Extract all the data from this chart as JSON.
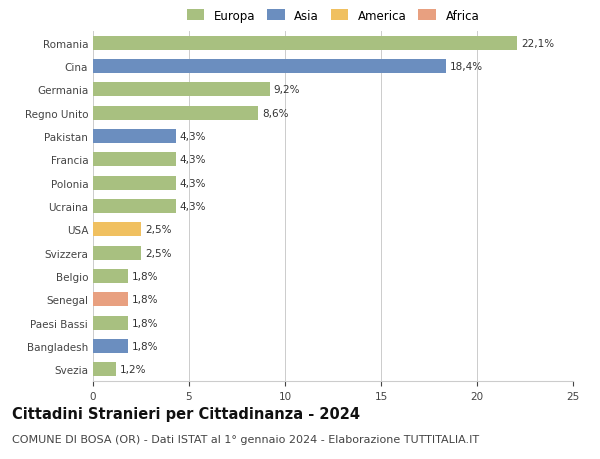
{
  "categories": [
    "Romania",
    "Cina",
    "Germania",
    "Regno Unito",
    "Pakistan",
    "Francia",
    "Polonia",
    "Ucraina",
    "USA",
    "Svizzera",
    "Belgio",
    "Senegal",
    "Paesi Bassi",
    "Bangladesh",
    "Svezia"
  ],
  "values": [
    22.1,
    18.4,
    9.2,
    8.6,
    4.3,
    4.3,
    4.3,
    4.3,
    2.5,
    2.5,
    1.8,
    1.8,
    1.8,
    1.8,
    1.2
  ],
  "labels": [
    "22,1%",
    "18,4%",
    "9,2%",
    "8,6%",
    "4,3%",
    "4,3%",
    "4,3%",
    "4,3%",
    "2,5%",
    "2,5%",
    "1,8%",
    "1,8%",
    "1,8%",
    "1,8%",
    "1,2%"
  ],
  "colors": [
    "#a8c080",
    "#6b8ebf",
    "#a8c080",
    "#a8c080",
    "#6b8ebf",
    "#a8c080",
    "#a8c080",
    "#a8c080",
    "#f0c060",
    "#a8c080",
    "#a8c080",
    "#e8a080",
    "#a8c080",
    "#6b8ebf",
    "#a8c080"
  ],
  "legend_labels": [
    "Europa",
    "Asia",
    "America",
    "Africa"
  ],
  "legend_colors": [
    "#a8c080",
    "#6b8ebf",
    "#f0c060",
    "#e8a080"
  ],
  "xlim": [
    0,
    25
  ],
  "xticks": [
    0,
    5,
    10,
    15,
    20,
    25
  ],
  "title": "Cittadini Stranieri per Cittadinanza - 2024",
  "subtitle": "COMUNE DI BOSA (OR) - Dati ISTAT al 1° gennaio 2024 - Elaborazione TUTTITALIA.IT",
  "title_fontsize": 10.5,
  "subtitle_fontsize": 8,
  "label_fontsize": 7.5,
  "tick_fontsize": 7.5,
  "legend_fontsize": 8.5,
  "background_color": "#ffffff",
  "grid_color": "#cccccc"
}
